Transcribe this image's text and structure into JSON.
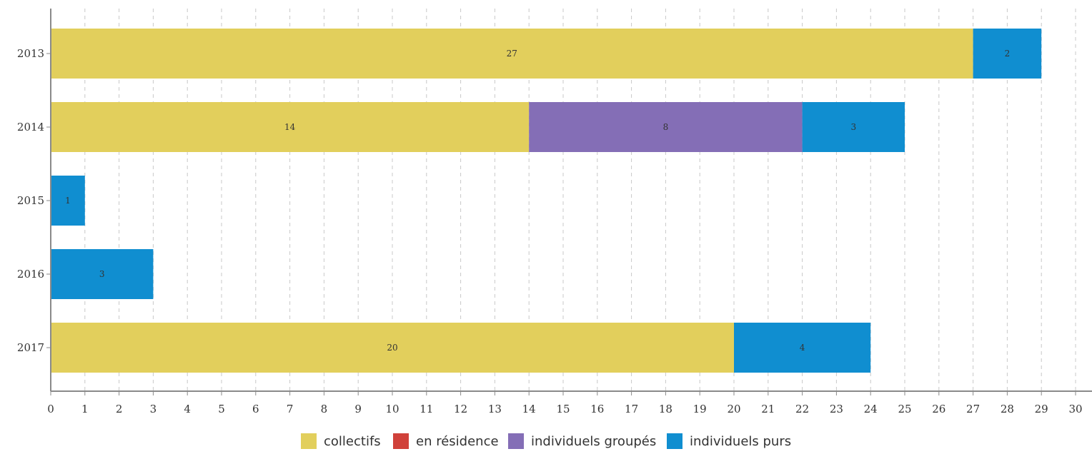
{
  "chart_data": {
    "type": "bar",
    "orientation": "horizontal",
    "stacked": true,
    "categories": [
      "2013",
      "2014",
      "2015",
      "2016",
      "2017"
    ],
    "series": [
      {
        "name": "collectifs",
        "color": "#e2cf5c",
        "values": [
          27,
          14,
          0,
          0,
          20
        ]
      },
      {
        "name": "en résidence",
        "color": "#d0413a",
        "values": [
          0,
          0,
          0,
          0,
          0
        ]
      },
      {
        "name": "individuels groupés",
        "color": "#846eb6",
        "values": [
          0,
          8,
          0,
          0,
          0
        ]
      },
      {
        "name": "individuels purs",
        "color": "#108ed0",
        "values": [
          2,
          3,
          1,
          3,
          4
        ]
      }
    ],
    "xlim": [
      0,
      30
    ],
    "x_ticks": [
      "0",
      "1",
      "2",
      "3",
      "4",
      "5",
      "6",
      "7",
      "8",
      "9",
      "10",
      "11",
      "12",
      "13",
      "14",
      "15",
      "16",
      "17",
      "18",
      "19",
      "20",
      "21",
      "22",
      "23",
      "24",
      "25",
      "26",
      "27",
      "28",
      "29",
      "30"
    ],
    "grid": "vertical dashed",
    "legend_position": "bottom",
    "title": "",
    "xlabel": "",
    "ylabel": ""
  }
}
